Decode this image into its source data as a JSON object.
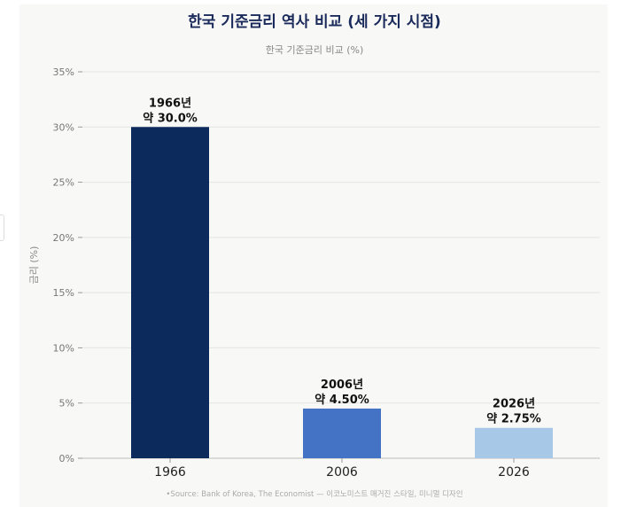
{
  "title": "한국 기준금리 역사 비교 (세 가지 시점)",
  "source": "•Source: Bank of Korea, The Economist  — 이코노미스트 매거진 스타일, 미니멀 디자인",
  "chart_data": {
    "type": "bar",
    "title": "한국 기준금리 비교 (%)",
    "xlabel": "",
    "ylabel": "금리 (%)",
    "ylim": [
      0,
      35
    ],
    "yticks": [
      "0%",
      "5%",
      "10%",
      "15%",
      "20%",
      "25%",
      "30%",
      "35%"
    ],
    "grid": true,
    "categories": [
      "1966",
      "2006",
      "2026"
    ],
    "values": [
      30.0,
      4.5,
      2.75
    ],
    "data_labels": [
      [
        "1966년",
        "약 30.0%"
      ],
      [
        "2006년",
        "약 4.50%"
      ],
      [
        "2026년",
        "약 2.75%"
      ]
    ],
    "colors": [
      "#0d2a5c",
      "#4472c4",
      "#a8c8e8"
    ]
  }
}
